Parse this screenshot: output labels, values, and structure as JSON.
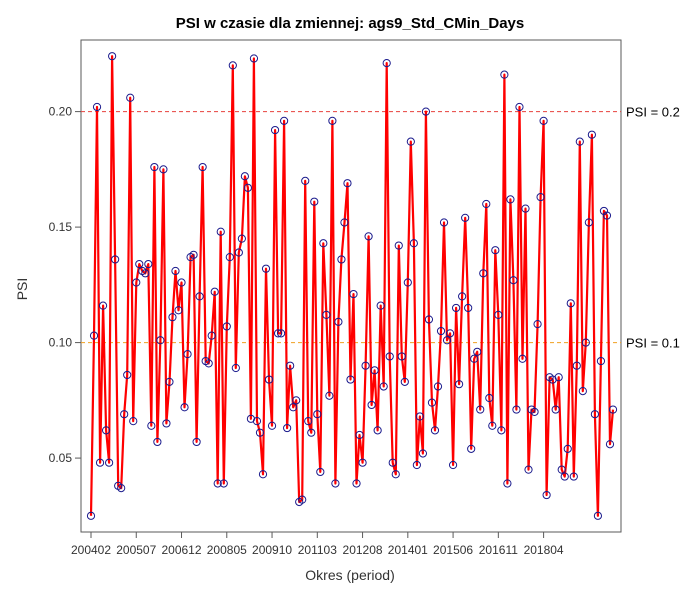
{
  "chart_data": {
    "type": "line",
    "title": "PSI w czasie dla zmiennej: ags9_Std_CMin_Days",
    "xlabel": "Okres (period)",
    "ylabel": "PSI",
    "x_tick_labels": [
      "200402",
      "200507",
      "200612",
      "200805",
      "200910",
      "201103",
      "201208",
      "201401",
      "201506",
      "201611",
      "201804"
    ],
    "y_ticks": [
      0.05,
      0.1,
      0.15,
      0.2
    ],
    "y_tick_labels": [
      "0.05",
      "0.10",
      "0.15",
      "0.20"
    ],
    "ylim": [
      0.018,
      0.231
    ],
    "reference_lines": [
      {
        "value": 0.2,
        "label": "PSI = 0.2",
        "color": "#e8413c",
        "style": "dashed"
      },
      {
        "value": 0.1,
        "label": "PSI = 0.1",
        "color": "#f0a020",
        "style": "dashed"
      }
    ],
    "series": [
      {
        "line_color": "#ff0000",
        "marker_color": "#1a1a8c",
        "values": [
          0.025,
          0.103,
          0.202,
          0.048,
          0.116,
          0.062,
          0.048,
          0.224,
          0.136,
          0.038,
          0.037,
          0.069,
          0.086,
          0.206,
          0.066,
          0.126,
          0.134,
          0.131,
          0.13,
          0.134,
          0.064,
          0.176,
          0.057,
          0.101,
          0.175,
          0.065,
          0.083,
          0.111,
          0.131,
          0.114,
          0.126,
          0.072,
          0.095,
          0.137,
          0.138,
          0.057,
          0.12,
          0.176,
          0.092,
          0.091,
          0.103,
          0.122,
          0.039,
          0.148,
          0.039,
          0.107,
          0.137,
          0.22,
          0.089,
          0.139,
          0.145,
          0.172,
          0.167,
          0.067,
          0.223,
          0.066,
          0.061,
          0.043,
          0.132,
          0.084,
          0.064,
          0.192,
          0.104,
          0.104,
          0.196,
          0.063,
          0.09,
          0.072,
          0.075,
          0.031,
          0.032,
          0.17,
          0.066,
          0.061,
          0.161,
          0.069,
          0.044,
          0.143,
          0.112,
          0.077,
          0.196,
          0.039,
          0.109,
          0.136,
          0.152,
          0.169,
          0.084,
          0.121,
          0.039,
          0.06,
          0.048,
          0.09,
          0.146,
          0.073,
          0.088,
          0.062,
          0.116,
          0.081,
          0.221,
          0.094,
          0.048,
          0.043,
          0.142,
          0.094,
          0.083,
          0.126,
          0.187,
          0.143,
          0.047,
          0.068,
          0.052,
          0.2,
          0.11,
          0.074,
          0.062,
          0.081,
          0.105,
          0.152,
          0.101,
          0.104,
          0.047,
          0.115,
          0.082,
          0.12,
          0.154,
          0.115,
          0.054,
          0.093,
          0.096,
          0.071,
          0.13,
          0.16,
          0.076,
          0.064,
          0.14,
          0.112,
          0.062,
          0.216,
          0.039,
          0.162,
          0.127,
          0.071,
          0.202,
          0.093,
          0.158,
          0.045,
          0.071,
          0.07,
          0.108,
          0.163,
          0.196,
          0.034,
          0.085,
          0.084,
          0.071,
          0.085,
          0.045,
          0.042,
          0.054,
          0.117,
          0.042,
          0.09,
          0.187,
          0.079,
          0.1,
          0.152,
          0.19,
          0.069,
          0.025,
          0.092,
          0.157,
          0.155,
          0.056,
          0.071
        ]
      }
    ],
    "grid": false,
    "legend": "none"
  }
}
